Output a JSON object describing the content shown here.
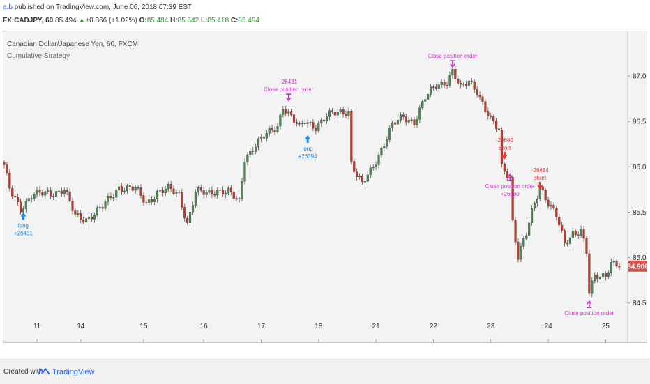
{
  "header": {
    "author": "a.b",
    "published": " published on TradingView.com, June 06, 2018 07:39 EST",
    "symbol": "FX:CADJPY, 60",
    "last": "85.494",
    "change": "+0.866 (+1.02%)",
    "o_label": "O:",
    "o": "85.484",
    "h_label": "H:",
    "h": "85.642",
    "l_label": "L:",
    "l": "85.418",
    "c_label": "C:",
    "c": "85.494"
  },
  "footer": {
    "created": "Created with",
    "brand": "TradingView"
  },
  "colors": {
    "up": "#4c8a52",
    "down": "#c0392b",
    "wick": "#555555",
    "buy": "#1e88e5",
    "sell": "#e53935",
    "close": "#cc33cc",
    "price_tag": "#d9534f"
  },
  "chart_data": {
    "type": "candlestick",
    "title": "Canadian Dollar/Japanese Yen, 60, FXCM",
    "subtitle": "Cumulative Strategy",
    "ylim": [
      84.06,
      87.5
    ],
    "y_ticks": [
      84.5,
      85.0,
      85.5,
      86.0,
      86.5,
      87.0
    ],
    "y_tick_labels": [
      "84.500",
      "85.000",
      "85.500",
      "86.000",
      "86.500",
      "87.000"
    ],
    "last_price": "84.906",
    "last_price_value": 84.906,
    "x_ticks": [
      {
        "label": "11",
        "i": 12
      },
      {
        "label": "14",
        "i": 28
      },
      {
        "label": "15",
        "i": 51
      },
      {
        "label": "16",
        "i": 73
      },
      {
        "label": "17",
        "i": 94
      },
      {
        "label": "18",
        "i": 115
      },
      {
        "label": "21",
        "i": 136
      },
      {
        "label": "22",
        "i": 157
      },
      {
        "label": "23",
        "i": 178
      },
      {
        "label": "24",
        "i": 199
      },
      {
        "label": "25",
        "i": 220
      }
    ],
    "anchors": [
      [
        0,
        86.0
      ],
      [
        2,
        85.75
      ],
      [
        6,
        85.55
      ],
      [
        10,
        85.68
      ],
      [
        14,
        85.7
      ],
      [
        18,
        85.72
      ],
      [
        22,
        85.75
      ],
      [
        26,
        85.45
      ],
      [
        30,
        85.43
      ],
      [
        36,
        85.55
      ],
      [
        42,
        85.78
      ],
      [
        48,
        85.75
      ],
      [
        52,
        85.6
      ],
      [
        56,
        85.72
      ],
      [
        60,
        85.75
      ],
      [
        64,
        85.7
      ],
      [
        67,
        85.38
      ],
      [
        70,
        85.72
      ],
      [
        74,
        85.7
      ],
      [
        78,
        85.75
      ],
      [
        82,
        85.72
      ],
      [
        86,
        85.6
      ],
      [
        88,
        86.1
      ],
      [
        92,
        86.25
      ],
      [
        96,
        86.35
      ],
      [
        100,
        86.45
      ],
      [
        102,
        86.68
      ],
      [
        105,
        86.55
      ],
      [
        108,
        86.42
      ],
      [
        110,
        86.5
      ],
      [
        114,
        86.45
      ],
      [
        118,
        86.55
      ],
      [
        122,
        86.6
      ],
      [
        126,
        86.62
      ],
      [
        127,
        86.05
      ],
      [
        129,
        85.9
      ],
      [
        131,
        85.8
      ],
      [
        134,
        85.95
      ],
      [
        138,
        86.2
      ],
      [
        142,
        86.45
      ],
      [
        146,
        86.55
      ],
      [
        150,
        86.5
      ],
      [
        154,
        86.75
      ],
      [
        158,
        86.9
      ],
      [
        162,
        86.95
      ],
      [
        164,
        87.05
      ],
      [
        167,
        86.85
      ],
      [
        170,
        86.95
      ],
      [
        173,
        86.85
      ],
      [
        175,
        86.7
      ],
      [
        178,
        86.5
      ],
      [
        181,
        86.4
      ],
      [
        182,
        86.0
      ],
      [
        185,
        85.9
      ],
      [
        186,
        85.4
      ],
      [
        188,
        85.0
      ],
      [
        191,
        85.25
      ],
      [
        193,
        85.5
      ],
      [
        196,
        85.8
      ],
      [
        199,
        85.6
      ],
      [
        202,
        85.45
      ],
      [
        205,
        85.15
      ],
      [
        208,
        85.28
      ],
      [
        211,
        85.3
      ],
      [
        213,
        85.05
      ],
      [
        214,
        84.6
      ],
      [
        216,
        84.78
      ],
      [
        220,
        84.82
      ],
      [
        222,
        84.95
      ],
      [
        225,
        84.9
      ]
    ],
    "annotations": [
      {
        "kind": "buy",
        "i": 7,
        "price": 85.53,
        "lines": [
          "long",
          "+26431"
        ]
      },
      {
        "kind": "close-above",
        "i": 104,
        "price": 86.7,
        "lines": [
          "-26431",
          "Close position order"
        ]
      },
      {
        "kind": "buy",
        "i": 111,
        "price": 86.38,
        "lines": [
          "long",
          "+26394"
        ]
      },
      {
        "kind": "close-above",
        "i": 164,
        "price": 87.07,
        "lines": [
          "Close position order"
        ]
      },
      {
        "kind": "sell",
        "i": 183,
        "price": 86.05,
        "lines": [
          "-26680",
          "short"
        ]
      },
      {
        "kind": "close-below",
        "i": 185,
        "price": 85.95,
        "lines": [
          "Close position order",
          "+26680"
        ]
      },
      {
        "kind": "sell",
        "i": 196,
        "price": 85.72,
        "lines": [
          "-26884",
          "short"
        ]
      },
      {
        "kind": "close-below",
        "i": 214,
        "price": 84.55,
        "lines": [
          "Close position order"
        ]
      }
    ]
  }
}
